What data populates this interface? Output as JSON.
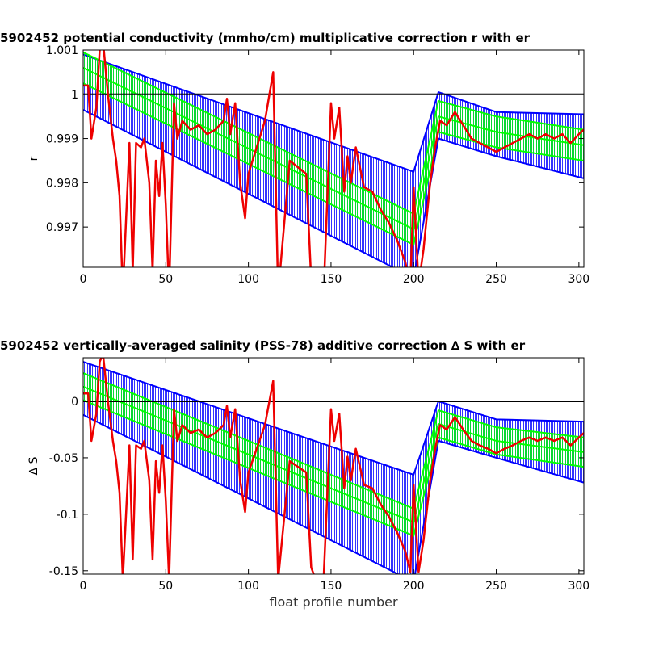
{
  "chart_data": [
    {
      "type": "line",
      "title": "5902452 potential conductivity (mmho/cm) multiplicative correction r with er",
      "ylabel": "r",
      "xlim": [
        0,
        303
      ],
      "xticks": [
        0,
        50,
        100,
        150,
        200,
        250,
        300
      ],
      "ylim": [
        0.99609,
        1.001
      ],
      "yticks": [
        1.001,
        1,
        0.999,
        0.998,
        0.997
      ],
      "hline": 1,
      "bands": [
        {
          "color": "#0000ff",
          "x": [
            0,
            200,
            215,
            250,
            303
          ],
          "upper": [
            1.0009,
            0.99825,
            1.00005,
            0.9996,
            0.99955
          ],
          "lower": [
            0.99965,
            0.99585,
            0.999,
            0.9986,
            0.9981
          ]
        },
        {
          "color": "#00ff00",
          "x": [
            0,
            200,
            215,
            250,
            303
          ],
          "upper": [
            1.00095,
            0.9973,
            0.99985,
            0.9995,
            0.9992
          ],
          "lower": [
            1.00025,
            0.9966,
            0.99915,
            0.9988,
            0.9985
          ],
          "center": [
            1.0006,
            0.99695,
            0.9995,
            0.99915,
            0.99885
          ]
        }
      ],
      "series": [
        {
          "color": "#ee0000",
          "x": [
            0,
            3,
            5,
            8,
            10,
            12,
            15,
            18,
            20,
            22,
            24,
            28,
            30,
            32,
            35,
            37,
            40,
            42,
            44,
            46,
            48,
            50,
            52,
            55,
            57,
            60,
            65,
            70,
            75,
            80,
            85,
            87,
            89,
            92,
            95,
            98,
            100,
            110,
            115,
            118,
            125,
            135,
            138,
            145,
            150,
            152,
            155,
            158,
            160,
            162,
            165,
            170,
            175,
            180,
            185,
            190,
            195,
            198,
            200,
            203,
            206,
            210,
            213,
            216,
            220,
            225,
            230,
            235,
            240,
            245,
            250,
            255,
            260,
            265,
            270,
            275,
            280,
            285,
            290,
            295,
            300,
            303
          ],
          "values": [
            1.0002,
            1.0002,
            0.999,
            0.9997,
            1.001,
            1.0012,
            1.0,
            0.999,
            0.9985,
            0.9977,
            0.9955,
            0.9989,
            0.996,
            0.9989,
            0.9988,
            0.999,
            0.998,
            0.996,
            0.9985,
            0.9977,
            0.9989,
            0.9975,
            0.9955,
            0.9998,
            0.999,
            0.9994,
            0.9992,
            0.9993,
            0.9991,
            0.9992,
            0.9994,
            0.9999,
            0.9991,
            0.9998,
            0.998,
            0.9972,
            0.9982,
            0.9994,
            1.0005,
            0.9955,
            0.9985,
            0.9982,
            0.9958,
            0.995,
            0.9998,
            0.999,
            0.9997,
            0.9978,
            0.9986,
            0.998,
            0.9988,
            0.9979,
            0.9978,
            0.9974,
            0.9971,
            0.9967,
            0.9962,
            0.9957,
            0.9979,
            0.9957,
            0.9965,
            0.998,
            0.9988,
            0.9994,
            0.9993,
            0.9996,
            0.9993,
            0.999,
            0.9989,
            0.9988,
            0.9987,
            0.9988,
            0.9989,
            0.999,
            0.9991,
            0.999,
            0.9991,
            0.999,
            0.9991,
            0.9989,
            0.9991,
            0.9992
          ]
        }
      ]
    },
    {
      "type": "line",
      "title": "5902452 vertically-averaged salinity (PSS-78) additive correction ∆ S with er",
      "ylabel": "∆ S",
      "xlabel": "float profile number",
      "xlim": [
        0,
        303
      ],
      "xticks": [
        0,
        50,
        100,
        150,
        200,
        250,
        300
      ],
      "ylim": [
        -0.153,
        0.0386
      ],
      "yticks": [
        0,
        -0.05,
        -0.1,
        -0.15
      ],
      "hline": 0,
      "bands": [
        {
          "color": "#0000ff",
          "x": [
            0,
            200,
            215,
            250,
            303
          ],
          "upper": [
            0.035,
            -0.065,
            0,
            -0.016,
            -0.018
          ],
          "lower": [
            -0.012,
            -0.16,
            -0.035,
            -0.05,
            -0.072
          ]
        },
        {
          "color": "#00ff00",
          "x": [
            0,
            200,
            215,
            250,
            303
          ],
          "upper": [
            0.025,
            -0.095,
            -0.008,
            -0.023,
            -0.032
          ],
          "lower": [
            0.001,
            -0.119,
            -0.032,
            -0.047,
            -0.058
          ],
          "center": [
            0.013,
            -0.107,
            -0.02,
            -0.035,
            -0.045
          ]
        }
      ],
      "series": [
        {
          "color": "#ee0000",
          "x": [
            0,
            3,
            5,
            8,
            10,
            12,
            15,
            18,
            20,
            22,
            24,
            28,
            30,
            32,
            35,
            37,
            40,
            42,
            44,
            46,
            48,
            50,
            52,
            55,
            57,
            60,
            65,
            70,
            75,
            80,
            85,
            87,
            89,
            92,
            95,
            98,
            100,
            110,
            115,
            118,
            125,
            135,
            138,
            145,
            150,
            152,
            155,
            158,
            160,
            162,
            165,
            170,
            175,
            180,
            185,
            190,
            195,
            198,
            200,
            203,
            206,
            210,
            213,
            216,
            220,
            225,
            230,
            235,
            240,
            245,
            250,
            255,
            260,
            265,
            270,
            275,
            280,
            285,
            290,
            295,
            300,
            303
          ],
          "values": [
            0.007,
            0.007,
            -0.035,
            -0.011,
            0.035,
            0.042,
            0,
            -0.035,
            -0.053,
            -0.081,
            -0.158,
            -0.039,
            -0.14,
            -0.039,
            -0.042,
            -0.035,
            -0.07,
            -0.14,
            -0.053,
            -0.081,
            -0.039,
            -0.088,
            -0.158,
            -0.007,
            -0.035,
            -0.021,
            -0.028,
            -0.025,
            -0.032,
            -0.028,
            -0.021,
            -0.004,
            -0.032,
            -0.007,
            -0.07,
            -0.098,
            -0.063,
            -0.021,
            0.018,
            -0.158,
            -0.053,
            -0.063,
            -0.147,
            -0.175,
            -0.007,
            -0.035,
            -0.011,
            -0.077,
            -0.049,
            -0.07,
            -0.042,
            -0.074,
            -0.077,
            -0.091,
            -0.102,
            -0.116,
            -0.133,
            -0.151,
            -0.074,
            -0.151,
            -0.123,
            -0.07,
            -0.042,
            -0.021,
            -0.025,
            -0.014,
            -0.025,
            -0.035,
            -0.039,
            -0.042,
            -0.046,
            -0.042,
            -0.039,
            -0.035,
            -0.032,
            -0.035,
            -0.032,
            -0.035,
            -0.032,
            -0.039,
            -0.032,
            -0.028
          ]
        }
      ]
    }
  ]
}
